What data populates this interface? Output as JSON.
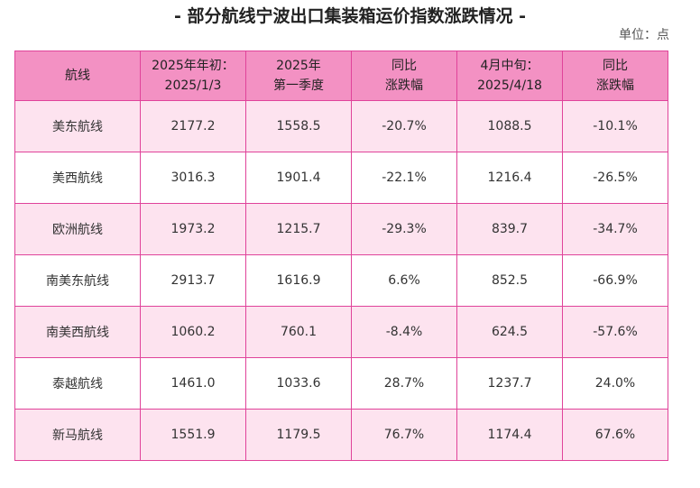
{
  "page": {
    "title": "- 部分航线宁波出口集装箱运价指数涨跌情况 -",
    "unit": "单位：点"
  },
  "colors": {
    "header_bg": "#f391c3",
    "row_alt_bg": "#fde3ef",
    "border": "#e0439a"
  },
  "table": {
    "headers": [
      [
        "航线"
      ],
      [
        "2025年年初：",
        "2025/1/3"
      ],
      [
        "2025年",
        "第一季度"
      ],
      [
        "同比",
        "涨跌幅"
      ],
      [
        "4月中旬：",
        "2025/4/18"
      ],
      [
        "同比",
        "涨跌幅"
      ]
    ],
    "rows": [
      [
        "美东航线",
        "2177.2",
        "1558.5",
        "-20.7%",
        "1088.5",
        "-10.1%"
      ],
      [
        "美西航线",
        "3016.3",
        "1901.4",
        "-22.1%",
        "1216.4",
        "-26.5%"
      ],
      [
        "欧洲航线",
        "1973.2",
        "1215.7",
        "-29.3%",
        "839.7",
        "-34.7%"
      ],
      [
        "南美东航线",
        "2913.7",
        "1616.9",
        "6.6%",
        "852.5",
        "-66.9%"
      ],
      [
        "南美西航线",
        "1060.2",
        "760.1",
        "-8.4%",
        "624.5",
        "-57.6%"
      ],
      [
        "泰越航线",
        "1461.0",
        "1033.6",
        "28.7%",
        "1237.7",
        "24.0%"
      ],
      [
        "新马航线",
        "1551.9",
        "1179.5",
        "76.7%",
        "1174.4",
        "67.6%"
      ]
    ]
  }
}
